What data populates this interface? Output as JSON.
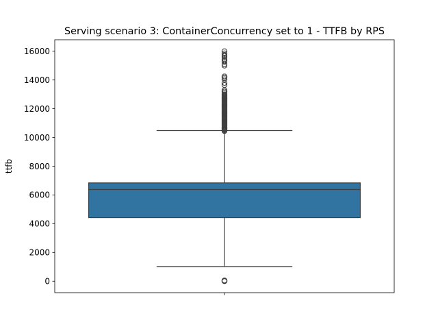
{
  "chart_data": {
    "type": "box",
    "title": "Serving scenario 3: ContainerConcurrency set to 1 - TTFB by RPS",
    "xlabel": "",
    "ylabel": "ttfb",
    "ylim": [
      -800,
      16800
    ],
    "yticks": [
      0,
      2000,
      4000,
      6000,
      8000,
      10000,
      12000,
      14000,
      16000
    ],
    "ytick_labels": [
      "0",
      "2000",
      "4000",
      "6000",
      "8000",
      "10000",
      "12000",
      "14000",
      "16000"
    ],
    "grid": false,
    "legend": "none",
    "box": {
      "whisker_low": 1020,
      "q1": 4420,
      "median": 6380,
      "q3": 6840,
      "whisker_high": 10480
    },
    "outliers_high": [
      10450,
      10500,
      10550,
      10600,
      10650,
      10700,
      10750,
      10800,
      10850,
      10900,
      10950,
      11000,
      11050,
      11100,
      11150,
      11200,
      11250,
      11300,
      11350,
      11400,
      11450,
      11500,
      11550,
      11600,
      11650,
      11700,
      11750,
      11800,
      11850,
      11900,
      11950,
      12000,
      12050,
      12100,
      12150,
      12200,
      12250,
      12300,
      12350,
      12400,
      12450,
      12500,
      12550,
      12600,
      12650,
      12700,
      12750,
      12800,
      12850,
      12900,
      12950,
      13000,
      13100,
      13200,
      13300,
      13650,
      13800,
      14050,
      14150,
      14250,
      15000,
      15100,
      15250,
      15350,
      15450,
      15550,
      15650,
      15750,
      15850,
      16000
    ],
    "outliers_low": [
      0,
      10,
      20,
      35,
      50
    ],
    "colors": {
      "box_fill": "#3274a1",
      "lines": "#3f3f3f",
      "outlier_edge": "#3f3f3f"
    }
  }
}
